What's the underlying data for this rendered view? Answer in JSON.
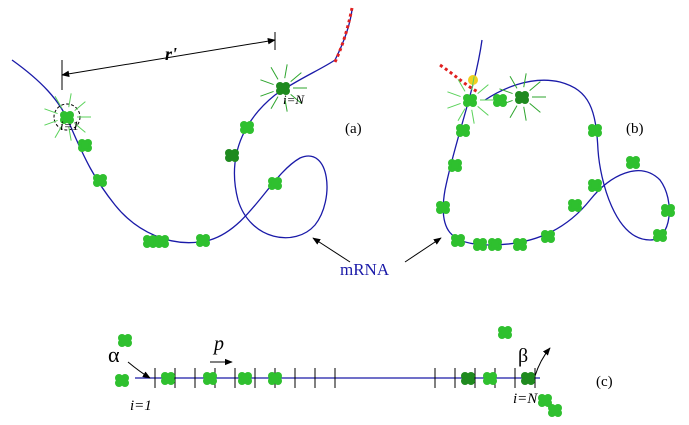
{
  "panel_a": {
    "distance_label": "r'",
    "first_site_label": "i=1",
    "last_site_label": "i=N",
    "panel_label": "(a)"
  },
  "panel_b": {
    "panel_label": "(b)"
  },
  "molecule_label": "mRNA",
  "panel_c": {
    "hop_label": "p",
    "entry_label": "α",
    "exit_label": "β",
    "panel_label": "(c)",
    "first_site_label": "i=1",
    "last_site_label": "i=N"
  }
}
